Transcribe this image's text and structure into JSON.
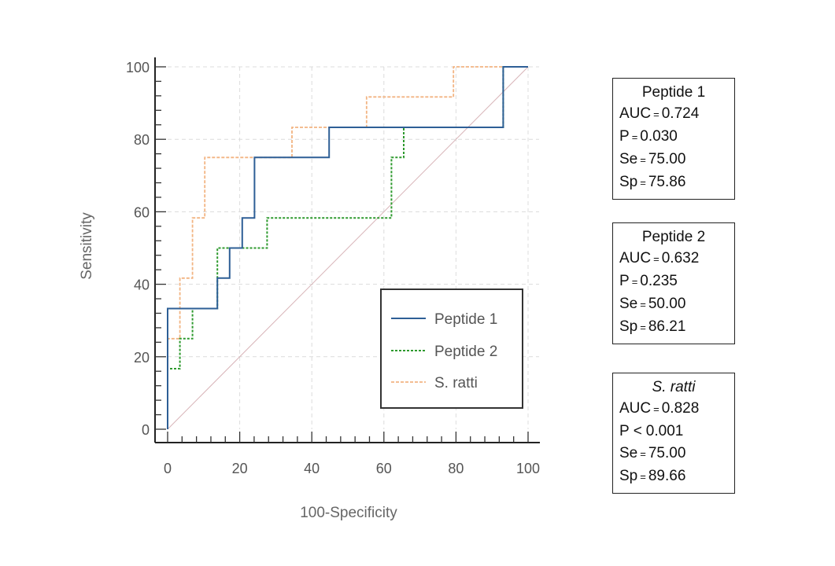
{
  "chart_data": {
    "type": "line",
    "xlabel": "100-Specificity",
    "ylabel": "Sensitivity",
    "xlim": [
      0,
      100
    ],
    "ylim": [
      0,
      100
    ],
    "xticks": [
      0,
      20,
      40,
      60,
      80,
      100
    ],
    "yticks": [
      0,
      20,
      40,
      60,
      80,
      100
    ],
    "grid": true,
    "legend_position": "bottom-right",
    "reference_line": {
      "x": [
        0,
        100
      ],
      "y": [
        0,
        100
      ],
      "color": "#d8b4b8"
    },
    "series": [
      {
        "name": "Peptide 1",
        "style": "solid",
        "color": "#2e5f96",
        "x": [
          0,
          0,
          13.8,
          13.8,
          17.2,
          17.2,
          20.7,
          20.7,
          24.1,
          24.1,
          44.8,
          44.8,
          93.1,
          93.1,
          100
        ],
        "y": [
          0,
          33.3,
          33.3,
          41.7,
          41.7,
          50,
          50,
          58.3,
          58.3,
          75,
          75,
          83.3,
          83.3,
          100,
          100
        ]
      },
      {
        "name": "Peptide 2",
        "style": "dashed",
        "color": "#2e9a2e",
        "x": [
          0,
          0,
          3.4,
          3.4,
          6.9,
          6.9,
          13.8,
          13.8,
          27.6,
          27.6,
          62.1,
          62.1,
          65.5,
          65.5,
          93.1,
          93.1,
          100
        ],
        "y": [
          0,
          16.7,
          16.7,
          25,
          25,
          33.3,
          33.3,
          50,
          50,
          58.3,
          58.3,
          75,
          75,
          83.3,
          83.3,
          100,
          100
        ]
      },
      {
        "name": "S. ratti",
        "style": "dashed",
        "color": "#f2b482",
        "x": [
          0,
          0,
          3.4,
          3.4,
          6.9,
          6.9,
          10.3,
          10.3,
          34.5,
          34.5,
          55.2,
          55.2,
          79.3,
          79.3,
          100
        ],
        "y": [
          0,
          25,
          25,
          41.7,
          41.7,
          58.3,
          58.3,
          75,
          75,
          83.3,
          83.3,
          91.7,
          91.7,
          100,
          100
        ]
      }
    ]
  },
  "stats": [
    {
      "title": "Peptide 1",
      "italic": false,
      "rows": [
        {
          "label": "AUC",
          "op": "=",
          "value": "0.724"
        },
        {
          "label": "P",
          "op": "=",
          "value": "0.030"
        },
        {
          "label": "Se",
          "op": "=",
          "value": "75.00"
        },
        {
          "label": "Sp",
          "op": "=",
          "value": "75.86"
        }
      ]
    },
    {
      "title": "Peptide 2",
      "italic": false,
      "rows": [
        {
          "label": "AUC",
          "op": "=",
          "value": "0.632"
        },
        {
          "label": "P",
          "op": "=",
          "value": "0.235"
        },
        {
          "label": "Se",
          "op": "=",
          "value": "50.00"
        },
        {
          "label": "Sp",
          "op": "=",
          "value": "86.21"
        }
      ]
    },
    {
      "title": "S. ratti",
      "italic": true,
      "rows": [
        {
          "label": "AUC",
          "op": "=",
          "value": "0.828"
        },
        {
          "label": "P",
          "op": "<",
          "value": "0.001"
        },
        {
          "label": "Se",
          "op": "=",
          "value": "75.00"
        },
        {
          "label": "Sp",
          "op": "=",
          "value": "89.66"
        }
      ]
    }
  ]
}
